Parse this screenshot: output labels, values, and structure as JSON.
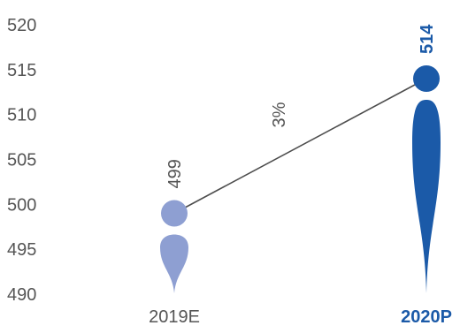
{
  "chart_data": {
    "type": "line",
    "title": "",
    "xlabel": "",
    "ylabel": "",
    "categories": [
      "2019E",
      "2020P"
    ],
    "series": [
      {
        "values": [
          499,
          514
        ],
        "colors": [
          "#8e9fd2",
          "#1b5aa8"
        ]
      }
    ],
    "data_labels": [
      "499",
      "514"
    ],
    "growth_label": "3%",
    "yticks": [
      "520",
      "515",
      "510",
      "505",
      "500",
      "495",
      "490"
    ],
    "ylim": [
      490,
      520
    ],
    "grid": false,
    "legend": "none"
  }
}
